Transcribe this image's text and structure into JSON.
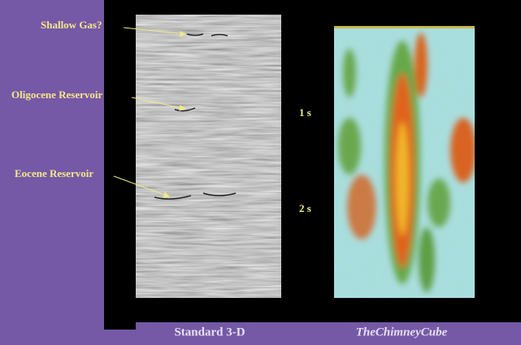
{
  "annotations": [
    "Shallow Gas?",
    "Oligocene Reservoir",
    "Eocene Reservoir"
  ],
  "time_labels": [
    "1 s",
    "2 s"
  ],
  "captions": [
    "Standard 3-D",
    "TheChimneyCube"
  ]
}
